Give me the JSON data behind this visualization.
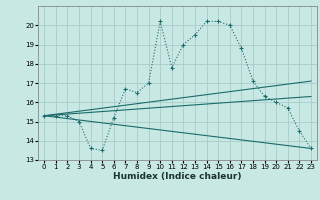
{
  "xlabel": "Humidex (Indice chaleur)",
  "xlim": [
    -0.5,
    23.5
  ],
  "ylim": [
    13,
    21
  ],
  "yticks": [
    13,
    14,
    15,
    16,
    17,
    18,
    19,
    20
  ],
  "xticks": [
    0,
    1,
    2,
    3,
    4,
    5,
    6,
    7,
    8,
    9,
    10,
    11,
    12,
    13,
    14,
    15,
    16,
    17,
    18,
    19,
    20,
    21,
    22,
    23
  ],
  "bg_color": "#c8e8e4",
  "grid_color": "#a8cccc",
  "line_color": "#1a6b6b",
  "line1_x": [
    0,
    1,
    2,
    3,
    4,
    5,
    6,
    7,
    8,
    9,
    10,
    11,
    12,
    13,
    14,
    15,
    16,
    17,
    18,
    19,
    20,
    21,
    22,
    23
  ],
  "line1_y": [
    15.3,
    15.3,
    15.3,
    15.0,
    13.6,
    13.5,
    15.2,
    16.7,
    16.5,
    17.0,
    20.2,
    17.8,
    19.0,
    19.5,
    20.2,
    20.2,
    20.0,
    18.8,
    17.1,
    16.3,
    16.0,
    15.7,
    14.5,
    13.6
  ],
  "line2_x": [
    0,
    23
  ],
  "line2_y": [
    15.3,
    13.6
  ],
  "line3_x": [
    0,
    23
  ],
  "line3_y": [
    15.3,
    16.3
  ],
  "line4_x": [
    0,
    23
  ],
  "line4_y": [
    15.3,
    17.1
  ]
}
